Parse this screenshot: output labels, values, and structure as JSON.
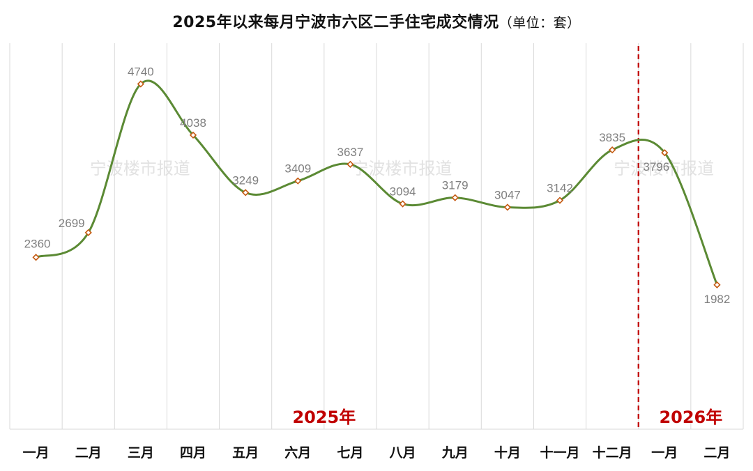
{
  "chart_data": {
    "type": "line",
    "title": "2025年以来每月宁波市六区二手住宅成交情况",
    "unit_label": "（单位：套）",
    "categories": [
      "一月",
      "二月",
      "三月",
      "四月",
      "五月",
      "六月",
      "七月",
      "八月",
      "九月",
      "十月",
      "十一月",
      "十二月",
      "一月",
      "二月"
    ],
    "values": [
      2360,
      2699,
      4740,
      4038,
      3249,
      3409,
      3637,
      3094,
      3179,
      3047,
      3142,
      3835,
      3796,
      1982
    ],
    "ylim": [
      0,
      5300
    ],
    "grid": "vertical",
    "legend": "none",
    "year_labels": [
      "2025年",
      "2026年"
    ],
    "divider_after_index": 11,
    "watermark": "宁波楼市报道",
    "colors": {
      "line": "#5b8a34",
      "marker_stroke": "#c55a11",
      "marker_fill": "#ffffff",
      "divider": "#c00000",
      "year_label": "#c00000",
      "gridline": "#d9d9d9"
    }
  }
}
